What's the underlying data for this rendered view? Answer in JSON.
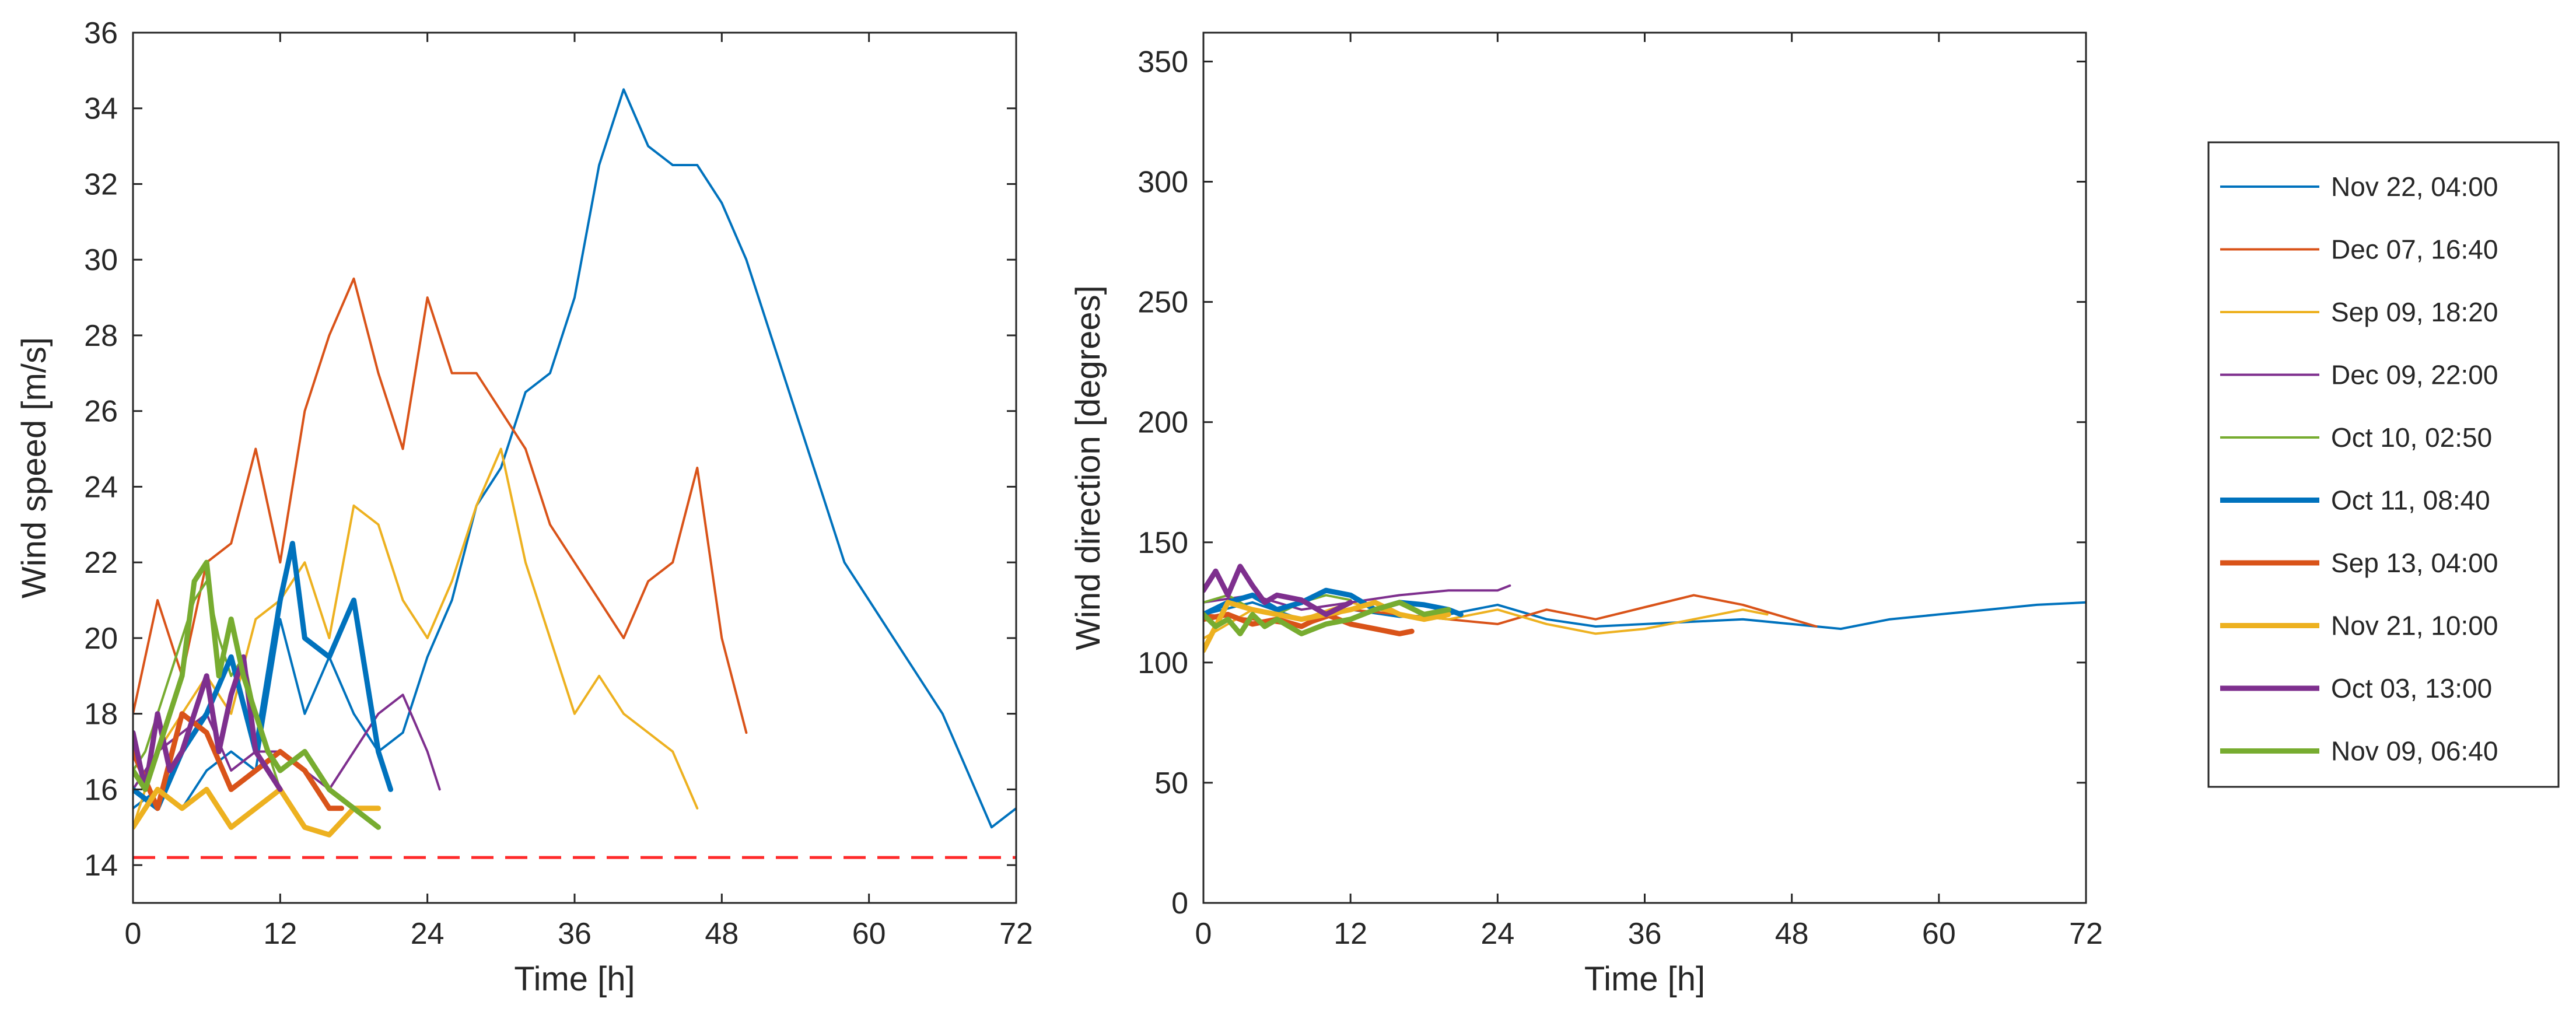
{
  "chart_data": [
    {
      "id": "speed",
      "type": "line",
      "xlabel": "Time [h]",
      "ylabel": "Wind speed [m/s]",
      "xlim": [
        0,
        72
      ],
      "ylim": [
        13,
        36
      ],
      "xticks": [
        0,
        12,
        24,
        36,
        48,
        60,
        72
      ],
      "yticks": [
        14,
        16,
        18,
        20,
        22,
        24,
        26,
        28,
        30,
        32,
        34,
        36
      ],
      "threshold": {
        "y": 14.2,
        "color": "#ff3333",
        "style": "dashed"
      },
      "series": [
        {
          "name": "Nov 22, 04:00",
          "x": [
            0,
            2,
            4,
            6,
            8,
            10,
            12,
            14,
            16,
            18,
            20,
            22,
            24,
            26,
            28,
            30,
            32,
            34,
            36,
            38,
            40,
            42,
            44,
            46,
            48,
            50,
            52,
            54,
            56,
            58,
            60,
            62,
            64,
            66,
            68,
            70,
            72
          ],
          "y": [
            15.5,
            16,
            15.5,
            16.5,
            17,
            16.5,
            20.5,
            18,
            19.5,
            18,
            17,
            17.5,
            19.5,
            21,
            23.5,
            24.5,
            26.5,
            27,
            29,
            32.5,
            34.5,
            33,
            32.5,
            32.5,
            31.5,
            30,
            28,
            26,
            24,
            22,
            21,
            20,
            19,
            18,
            16.5,
            15,
            15.5
          ]
        },
        {
          "name": "Dec 07, 16:40",
          "x": [
            0,
            2,
            4,
            6,
            8,
            10,
            12,
            14,
            16,
            18,
            20,
            22,
            24,
            26,
            28,
            30,
            32,
            34,
            36,
            38,
            40,
            42,
            44,
            46,
            48,
            50
          ],
          "y": [
            18,
            21,
            19,
            22,
            22.5,
            25,
            22,
            26,
            28,
            29.5,
            27,
            25,
            29,
            27,
            27,
            26,
            25,
            23,
            22,
            21,
            20,
            21.5,
            22,
            24.5,
            20,
            17.5
          ]
        },
        {
          "name": "Sep 09, 18:20",
          "x": [
            0,
            2,
            4,
            6,
            8,
            10,
            12,
            14,
            16,
            18,
            20,
            22,
            24,
            26,
            28,
            30,
            32,
            34,
            36,
            38,
            40,
            42,
            44,
            46
          ],
          "y": [
            15,
            17,
            18,
            19,
            18,
            20.5,
            21,
            22,
            20,
            23.5,
            23,
            21,
            20,
            21.5,
            23.5,
            25,
            22,
            20,
            18,
            19,
            18,
            17.5,
            17,
            15.5
          ]
        },
        {
          "name": "Dec 09, 22:00",
          "x": [
            0,
            2,
            4,
            6,
            8,
            10,
            12,
            14,
            16,
            18,
            20,
            22,
            24,
            25
          ],
          "y": [
            16,
            17,
            17.5,
            18,
            16.5,
            17,
            17,
            16.5,
            16,
            17,
            18,
            18.5,
            17,
            16
          ]
        },
        {
          "name": "Oct 10, 02:50",
          "x": [
            0,
            1,
            2,
            3,
            4,
            5,
            6,
            7,
            8,
            9,
            10,
            11,
            12
          ],
          "y": [
            16.5,
            17,
            18,
            19,
            20,
            21,
            21.5,
            20,
            19,
            19.5,
            18,
            17,
            16
          ]
        },
        {
          "name": "Oct 11, 08:40",
          "x": [
            0,
            2,
            4,
            6,
            8,
            10,
            12,
            13,
            14,
            16,
            18,
            20,
            21
          ],
          "y": [
            16,
            15.5,
            17,
            18,
            19.5,
            17,
            21,
            22.5,
            20,
            19.5,
            21,
            17,
            16
          ]
        },
        {
          "name": "Sep 13, 04:00",
          "x": [
            0,
            2,
            4,
            6,
            8,
            10,
            12,
            14,
            16,
            17
          ],
          "y": [
            17,
            15.5,
            18,
            17.5,
            16,
            16.5,
            17,
            16.5,
            15.5,
            15.5
          ]
        },
        {
          "name": "Nov 21, 10:00",
          "x": [
            0,
            2,
            4,
            6,
            8,
            10,
            12,
            14,
            16,
            18,
            20
          ],
          "y": [
            15,
            16,
            15.5,
            16,
            15,
            15.5,
            16,
            15,
            14.8,
            15.5,
            15.5
          ]
        },
        {
          "name": "Oct 03, 13:00",
          "x": [
            0,
            1,
            2,
            3,
            4,
            5,
            6,
            7,
            8,
            9,
            10,
            11,
            12
          ],
          "y": [
            17.5,
            16,
            18,
            16.5,
            17,
            18,
            19,
            17,
            18.5,
            19.5,
            17,
            16.5,
            16
          ]
        },
        {
          "name": "Nov 09, 06:40",
          "x": [
            0,
            1,
            2,
            3,
            4,
            5,
            6,
            7,
            8,
            9,
            10,
            11,
            12,
            14,
            16,
            18,
            20
          ],
          "y": [
            16.5,
            16,
            17,
            18,
            19,
            21.5,
            22,
            19,
            20.5,
            19,
            18,
            17,
            16.5,
            17,
            16,
            15.5,
            15
          ]
        }
      ]
    },
    {
      "id": "direction",
      "type": "line",
      "xlabel": "Time [h]",
      "ylabel": "Wind direction [degrees]",
      "xlim": [
        0,
        72
      ],
      "ylim": [
        0,
        362
      ],
      "xticks": [
        0,
        12,
        24,
        36,
        48,
        60,
        72
      ],
      "yticks": [
        0,
        50,
        100,
        150,
        200,
        250,
        300,
        350
      ],
      "series": [
        {
          "name": "Nov 22, 04:00",
          "x": [
            0,
            4,
            8,
            12,
            16,
            20,
            24,
            28,
            32,
            36,
            40,
            44,
            48,
            52,
            56,
            60,
            64,
            68,
            72
          ],
          "y": [
            120,
            125,
            118,
            122,
            119,
            120,
            124,
            118,
            115,
            116,
            117,
            118,
            116,
            114,
            118,
            120,
            122,
            124,
            125
          ]
        },
        {
          "name": "Dec 07, 16:40",
          "x": [
            0,
            4,
            8,
            12,
            16,
            20,
            24,
            28,
            32,
            36,
            40,
            44,
            48,
            50
          ],
          "y": [
            120,
            118,
            115,
            122,
            120,
            118,
            116,
            122,
            118,
            123,
            128,
            124,
            118,
            115
          ]
        },
        {
          "name": "Sep 09, 18:20",
          "x": [
            0,
            4,
            8,
            12,
            16,
            20,
            24,
            28,
            32,
            36,
            40,
            44,
            46
          ],
          "y": [
            110,
            122,
            118,
            125,
            120,
            118,
            122,
            116,
            112,
            114,
            118,
            122,
            120
          ]
        },
        {
          "name": "Dec 09, 22:00",
          "x": [
            0,
            4,
            8,
            12,
            16,
            20,
            24,
            25
          ],
          "y": [
            125,
            128,
            122,
            125,
            128,
            130,
            130,
            132
          ]
        },
        {
          "name": "Oct 10, 02:50",
          "x": [
            0,
            2,
            4,
            6,
            8,
            10,
            12
          ],
          "y": [
            125,
            128,
            122,
            120,
            125,
            128,
            126
          ]
        },
        {
          "name": "Oct 11, 08:40",
          "x": [
            0,
            2,
            4,
            6,
            8,
            10,
            12,
            14,
            16,
            18,
            20,
            21
          ],
          "y": [
            120,
            125,
            128,
            122,
            125,
            130,
            128,
            122,
            125,
            124,
            122,
            120
          ]
        },
        {
          "name": "Sep 13, 04:00",
          "x": [
            0,
            2,
            4,
            6,
            8,
            10,
            12,
            14,
            16,
            17
          ],
          "y": [
            118,
            120,
            116,
            118,
            115,
            120,
            116,
            114,
            112,
            113
          ]
        },
        {
          "name": "Nov 21, 10:00",
          "x": [
            0,
            1,
            2,
            4,
            6,
            8,
            10,
            12,
            14,
            16,
            18,
            20
          ],
          "y": [
            105,
            115,
            125,
            122,
            120,
            118,
            120,
            122,
            125,
            120,
            118,
            120
          ]
        },
        {
          "name": "Oct 03, 13:00",
          "x": [
            0,
            1,
            2,
            3,
            4,
            5,
            6,
            8,
            10,
            12
          ],
          "y": [
            130,
            138,
            128,
            140,
            132,
            125,
            128,
            126,
            120,
            125
          ]
        },
        {
          "name": "Nov 09, 06:40",
          "x": [
            0,
            1,
            2,
            3,
            4,
            5,
            6,
            8,
            10,
            12,
            14,
            16,
            18,
            20
          ],
          "y": [
            120,
            115,
            118,
            112,
            120,
            115,
            118,
            112,
            116,
            118,
            122,
            125,
            120,
            122
          ]
        }
      ]
    }
  ],
  "legend": {
    "items": [
      {
        "label": "Nov 22, 04:00",
        "color": "#0072bd",
        "bold": false
      },
      {
        "label": "Dec 07, 16:40",
        "color": "#d95319",
        "bold": false
      },
      {
        "label": "Sep 09, 18:20",
        "color": "#edb120",
        "bold": false
      },
      {
        "label": "Dec 09, 22:00",
        "color": "#7e2f8e",
        "bold": false
      },
      {
        "label": "Oct 10, 02:50",
        "color": "#77ac30",
        "bold": false
      },
      {
        "label": "Oct 11, 08:40",
        "color": "#0072bd",
        "bold": true
      },
      {
        "label": "Sep 13, 04:00",
        "color": "#d95319",
        "bold": true
      },
      {
        "label": "Nov 21, 10:00",
        "color": "#edb120",
        "bold": true
      },
      {
        "label": "Oct 03, 13:00",
        "color": "#7e2f8e",
        "bold": true
      },
      {
        "label": "Nov 09, 06:40",
        "color": "#77ac30",
        "bold": true
      }
    ]
  }
}
